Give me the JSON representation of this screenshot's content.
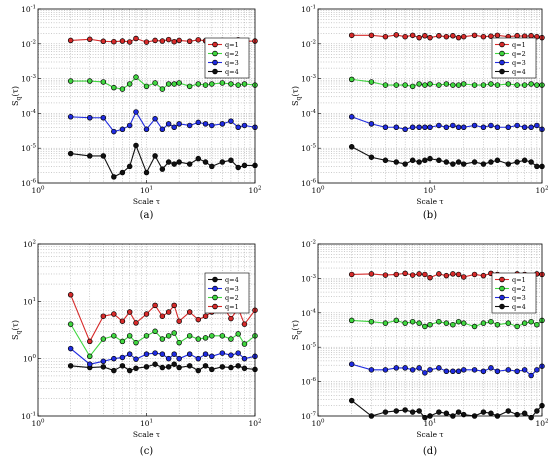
{
  "colors": {
    "q1": "#d62a2a",
    "q2": "#3fd63f",
    "q3": "#1f2be0",
    "q4": "#111111"
  },
  "panels": [
    {
      "caption": "(a)",
      "ylabel_main": "S",
      "ylabel_sub": "q",
      "ylabel_arg": "(τ)",
      "xlabel": "Scale τ",
      "y_tick_labels": [
        "10-6",
        "10-5",
        "10-4",
        "10-3",
        "10-2",
        "10-1"
      ],
      "x_tick_labels": [
        "100",
        "101",
        "102"
      ]
    },
    {
      "caption": "(b)",
      "ylabel_main": "S",
      "ylabel_sub": "q",
      "ylabel_arg": "(τ)",
      "xlabel": "Scale τ",
      "y_tick_labels": [
        "10-6",
        "10-5",
        "10-4",
        "10-3",
        "10-2",
        "10-1"
      ],
      "x_tick_labels": [
        "100",
        "101",
        "102"
      ]
    },
    {
      "caption": "(c)",
      "ylabel_main": "S",
      "ylabel_sub": "q",
      "ylabel_arg": "(τ)",
      "xlabel": "Scale τ",
      "y_tick_labels": [
        "10-1",
        "100",
        "101",
        "102"
      ],
      "x_tick_labels": [
        "100",
        "101",
        "102"
      ]
    },
    {
      "caption": "(d)",
      "ylabel_main": "S",
      "ylabel_sub": "q",
      "ylabel_arg": "(τ)",
      "xlabel": "Scale τ",
      "y_tick_labels": [
        "10-7",
        "10-6",
        "10-5",
        "10-4",
        "10-3",
        "10-2"
      ],
      "x_tick_labels": [
        "100",
        "101",
        "102"
      ]
    }
  ],
  "chart_data": [
    {
      "type": "line",
      "x_scale": "log",
      "y_scale": "log",
      "xlim": [
        1,
        100
      ],
      "ylim": [
        1e-06,
        0.1
      ],
      "xlabel": "Scale τ",
      "ylabel": "Sq(τ)",
      "grid": true,
      "legend_position": "top-right",
      "x": [
        2,
        3,
        4,
        5,
        6,
        7,
        8,
        10,
        12,
        14,
        16,
        18,
        20,
        25,
        30,
        35,
        40,
        50,
        60,
        70,
        80,
        100
      ],
      "series": [
        {
          "name": "q=1",
          "color": "#d62a2a",
          "values": [
            0.0125,
            0.0135,
            0.0118,
            0.0115,
            0.012,
            0.0113,
            0.0142,
            0.0112,
            0.0125,
            0.012,
            0.0132,
            0.0115,
            0.0125,
            0.0118,
            0.013,
            0.0122,
            0.0115,
            0.0125,
            0.0122,
            0.013,
            0.0118,
            0.012
          ]
        },
        {
          "name": "q=2",
          "color": "#3fd63f",
          "values": [
            0.00085,
            0.00085,
            0.0008,
            0.00055,
            0.0005,
            0.0007,
            0.0011,
            0.0006,
            0.00075,
            0.0005,
            0.0007,
            0.0007,
            0.00075,
            0.0006,
            0.0007,
            0.00065,
            0.0007,
            0.00075,
            0.0007,
            0.00065,
            0.0007,
            0.00065
          ]
        },
        {
          "name": "q=3",
          "color": "#1f2be0",
          "values": [
            8e-05,
            7.5e-05,
            7.5e-05,
            3e-05,
            3.5e-05,
            4.5e-05,
            0.00011,
            3.5e-05,
            7e-05,
            3.5e-05,
            5e-05,
            4e-05,
            5e-05,
            4.5e-05,
            5.5e-05,
            5e-05,
            4.5e-05,
            5e-05,
            6e-05,
            4e-05,
            4.5e-05,
            4e-05
          ]
        },
        {
          "name": "q=4",
          "color": "#111111",
          "values": [
            7e-06,
            6e-06,
            6e-06,
            1.5e-06,
            2e-06,
            3e-06,
            1.2e-05,
            2e-06,
            6e-06,
            2.5e-06,
            4e-06,
            3.5e-06,
            4e-06,
            3.5e-06,
            5e-06,
            4e-06,
            3e-06,
            4e-06,
            4.5e-06,
            2.8e-06,
            3.2e-06,
            3.2e-06
          ]
        }
      ]
    },
    {
      "type": "line",
      "x_scale": "log",
      "y_scale": "log",
      "xlim": [
        1,
        100
      ],
      "ylim": [
        1e-06,
        0.1
      ],
      "xlabel": "Scale τ",
      "ylabel": "Sq(τ)",
      "grid": true,
      "legend_position": "top-right",
      "x": [
        2,
        3,
        4,
        5,
        6,
        7,
        8,
        9,
        10,
        12,
        14,
        16,
        18,
        20,
        25,
        30,
        35,
        40,
        50,
        60,
        70,
        80,
        90,
        100
      ],
      "series": [
        {
          "name": "q=1",
          "color": "#d62a2a",
          "values": [
            0.0175,
            0.0175,
            0.016,
            0.018,
            0.016,
            0.0175,
            0.015,
            0.017,
            0.015,
            0.017,
            0.016,
            0.017,
            0.015,
            0.016,
            0.0175,
            0.016,
            0.0165,
            0.0175,
            0.016,
            0.017,
            0.0165,
            0.017,
            0.016,
            0.015
          ]
        },
        {
          "name": "q=2",
          "color": "#3fd63f",
          "values": [
            0.00095,
            0.0008,
            0.00065,
            0.00065,
            0.00065,
            0.0006,
            0.0007,
            0.00065,
            0.0007,
            0.00065,
            0.0007,
            0.00065,
            0.00065,
            0.0007,
            0.00065,
            0.00065,
            0.0007,
            0.00065,
            0.0007,
            0.00065,
            0.00065,
            0.0007,
            0.00065,
            0.00065
          ]
        },
        {
          "name": "q=3",
          "color": "#1f2be0",
          "values": [
            8e-05,
            5e-05,
            4e-05,
            4e-05,
            3.5e-05,
            4e-05,
            4e-05,
            4e-05,
            4e-05,
            4.5e-05,
            4e-05,
            4.5e-05,
            4e-05,
            4e-05,
            4.5e-05,
            4e-05,
            4.5e-05,
            4e-05,
            4e-05,
            4.5e-05,
            4e-05,
            4e-05,
            4.5e-05,
            3.5e-05
          ]
        },
        {
          "name": "q=4",
          "color": "#111111",
          "values": [
            1.1e-05,
            5.5e-06,
            4.5e-06,
            4e-06,
            3.5e-06,
            4.5e-06,
            4e-06,
            4.5e-06,
            5e-06,
            4.5e-06,
            4e-06,
            3.5e-06,
            4e-06,
            3.5e-06,
            4e-06,
            3.5e-06,
            4e-06,
            4.5e-06,
            3.5e-06,
            4e-06,
            4.5e-06,
            4e-06,
            3e-06,
            3e-06
          ]
        }
      ]
    },
    {
      "type": "line",
      "x_scale": "log",
      "y_scale": "log",
      "xlim": [
        1,
        100
      ],
      "ylim": [
        0.1,
        100
      ],
      "xlabel": "Scale τ",
      "ylabel": "Sq(τ)",
      "grid": true,
      "legend_position": "top-right",
      "x": [
        2,
        3,
        4,
        5,
        6,
        7,
        8,
        10,
        12,
        14,
        16,
        18,
        20,
        25,
        30,
        35,
        40,
        50,
        60,
        70,
        80,
        100
      ],
      "series": [
        {
          "name": "q=4",
          "color": "#111111",
          "values": [
            0.75,
            0.7,
            0.72,
            0.62,
            0.75,
            0.62,
            0.68,
            0.72,
            0.8,
            0.7,
            0.72,
            0.8,
            0.7,
            0.75,
            0.62,
            0.75,
            0.65,
            0.72,
            0.7,
            0.75,
            0.68,
            0.65
          ]
        },
        {
          "name": "q=3",
          "color": "#1f2be0",
          "values": [
            1.5,
            0.8,
            0.9,
            1.0,
            1.05,
            1.2,
            0.98,
            1.2,
            1.25,
            1.2,
            1.0,
            1.2,
            1.0,
            1.2,
            1.0,
            1.2,
            1.1,
            1.25,
            1.15,
            1.25,
            1.0,
            1.1
          ]
        },
        {
          "name": "q=2",
          "color": "#3fd63f",
          "values": [
            4.0,
            1.1,
            2.2,
            2.5,
            2.0,
            2.5,
            1.9,
            2.5,
            3.0,
            2.2,
            2.5,
            2.8,
            1.9,
            2.5,
            2.2,
            2.3,
            2.5,
            2.5,
            2.2,
            2.7,
            1.8,
            2.5
          ]
        },
        {
          "name": "q=1",
          "color": "#d62a2a",
          "values": [
            13,
            2.0,
            5.5,
            6.0,
            4.5,
            6.5,
            4.2,
            6.0,
            8.5,
            5.5,
            6.5,
            8.5,
            4.5,
            6.5,
            4.8,
            5.5,
            6.5,
            8.5,
            5.0,
            7.5,
            4.0,
            7.0
          ]
        }
      ]
    },
    {
      "type": "line",
      "x_scale": "log",
      "y_scale": "log",
      "xlim": [
        1,
        100
      ],
      "ylim": [
        1e-07,
        0.01
      ],
      "xlabel": "Scale τ",
      "ylabel": "Sq(τ)",
      "grid": true,
      "legend_position": "top-right",
      "x": [
        2,
        3,
        4,
        5,
        6,
        7,
        8,
        9,
        10,
        12,
        14,
        16,
        18,
        20,
        25,
        30,
        35,
        40,
        50,
        60,
        70,
        80,
        90,
        100
      ],
      "series": [
        {
          "name": "q=1",
          "color": "#d62a2a",
          "values": [
            0.0013,
            0.00135,
            0.00125,
            0.0013,
            0.0014,
            0.00125,
            0.00135,
            0.0013,
            0.00105,
            0.00135,
            0.0012,
            0.00135,
            0.0013,
            0.0011,
            0.0013,
            0.0012,
            0.0014,
            0.0013,
            0.0012,
            0.00135,
            0.0013,
            0.0012,
            0.00135,
            0.0013
          ]
        },
        {
          "name": "q=2",
          "color": "#3fd63f",
          "values": [
            6e-05,
            5.5e-05,
            5e-05,
            6e-05,
            5e-05,
            5.5e-05,
            5e-05,
            4e-05,
            4.5e-05,
            5.5e-05,
            5e-05,
            4.5e-05,
            5.5e-05,
            5e-05,
            4e-05,
            5e-05,
            5.5e-05,
            4.5e-05,
            5e-05,
            4e-05,
            5e-05,
            5.5e-05,
            4.5e-05,
            6e-05
          ]
        },
        {
          "name": "q=3",
          "color": "#1f2be0",
          "values": [
            3.2e-06,
            2.2e-06,
            2.2e-06,
            2.5e-06,
            2.5e-06,
            2.2e-06,
            2.5e-06,
            1.8e-06,
            2.2e-06,
            2.5e-06,
            2e-06,
            2e-06,
            2e-06,
            2.2e-06,
            2.2e-06,
            2e-06,
            2.5e-06,
            2e-06,
            2.2e-06,
            2e-06,
            2.2e-06,
            1.5e-06,
            2.2e-06,
            2.8e-06
          ]
        },
        {
          "name": "q=4",
          "color": "#111111",
          "values": [
            2.8e-07,
            1e-07,
            1.3e-07,
            1.4e-07,
            1.5e-07,
            1.3e-07,
            1.4e-07,
            9e-08,
            1e-07,
            1.3e-07,
            1.2e-07,
            1e-07,
            1.3e-07,
            1.1e-07,
            1e-07,
            1.3e-07,
            1.2e-07,
            1e-07,
            1.4e-07,
            1.1e-07,
            1.2e-07,
            9e-08,
            1.4e-07,
            2e-07
          ]
        }
      ]
    }
  ]
}
